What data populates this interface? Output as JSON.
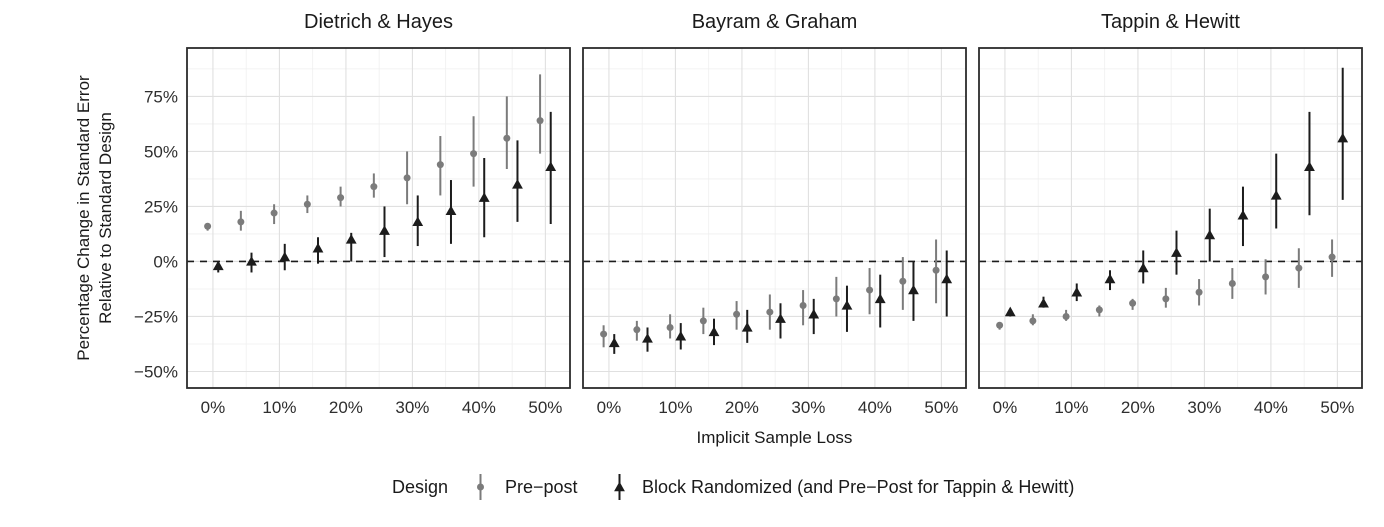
{
  "chart_data": {
    "type": "pointrange",
    "xlabel": "Implicit Sample Loss",
    "ylabel_lines": [
      "Percentage Change in Standard Error",
      "Relative to Standard Design"
    ],
    "xlim": [
      -3.9,
      53.7
    ],
    "ylim": [
      -57.5,
      97
    ],
    "x_ticks": {
      "values": [
        0,
        10,
        20,
        30,
        40,
        50
      ],
      "labels": [
        "0%",
        "10%",
        "20%",
        "30%",
        "40%",
        "50%"
      ]
    },
    "y_ticks": {
      "values": [
        -50,
        -25,
        0,
        25,
        50,
        75
      ],
      "labels": [
        "−50%",
        "−25%",
        "0%",
        "25%",
        "50%",
        "75%"
      ]
    },
    "grid": {
      "major": true,
      "minor": true,
      "major_color": "#e0e0e0",
      "minor_color": "#efefef"
    },
    "reference_line": {
      "y": 0,
      "style": "dashed",
      "color": "#1c1c1c"
    },
    "dodge_offset": 0.8,
    "series_styles": [
      {
        "name": "Pre−post",
        "shape": "circle",
        "color": "#7b7b7b"
      },
      {
        "name": "Block Randomized (and Pre−Post for Tappin & Hewitt)",
        "shape": "triangle",
        "color": "#1c1c1c"
      }
    ],
    "legend": {
      "title": "Design",
      "position": "bottom",
      "entries": [
        {
          "label": "Pre−post",
          "shape": "circle",
          "color": "#7b7b7b"
        },
        {
          "label": "Block Randomized (and Pre−Post for Tappin & Hewitt)",
          "shape": "triangle",
          "color": "#1c1c1c"
        }
      ]
    },
    "point_format": [
      "x_percent",
      "estimate",
      "ci_low",
      "ci_high"
    ],
    "panels": [
      {
        "title": "Dietrich & Hayes",
        "series": [
          {
            "name": "Pre−post",
            "points": [
              [
                0,
                16,
                14,
                17
              ],
              [
                5,
                18,
                14,
                23
              ],
              [
                10,
                22,
                17,
                26
              ],
              [
                15,
                26,
                22,
                30
              ],
              [
                20,
                29,
                25,
                34
              ],
              [
                25,
                34,
                29,
                40
              ],
              [
                30,
                38,
                26,
                50
              ],
              [
                35,
                44,
                30,
                57
              ],
              [
                40,
                49,
                34,
                66
              ],
              [
                45,
                56,
                42,
                75
              ],
              [
                50,
                64,
                49,
                85
              ]
            ]
          },
          {
            "name": "Block Randomized (and Pre−Post for Tappin & Hewitt)",
            "points": [
              [
                0,
                -2,
                -5,
                0
              ],
              [
                5,
                0,
                -5,
                4
              ],
              [
                10,
                2,
                -4,
                8
              ],
              [
                15,
                6,
                -1,
                11
              ],
              [
                20,
                10,
                0,
                13
              ],
              [
                25,
                14,
                2,
                25
              ],
              [
                30,
                18,
                7,
                30
              ],
              [
                35,
                23,
                8,
                37
              ],
              [
                40,
                29,
                11,
                47
              ],
              [
                45,
                35,
                18,
                55
              ],
              [
                50,
                43,
                17,
                68
              ]
            ]
          }
        ]
      },
      {
        "title": "Bayram & Graham",
        "series": [
          {
            "name": "Pre−post",
            "points": [
              [
                0,
                -33,
                -39,
                -29
              ],
              [
                5,
                -31,
                -36,
                -27
              ],
              [
                10,
                -30,
                -35,
                -24
              ],
              [
                15,
                -27,
                -33,
                -21
              ],
              [
                20,
                -24,
                -31,
                -18
              ],
              [
                25,
                -23,
                -31,
                -15
              ],
              [
                30,
                -20,
                -29,
                -13
              ],
              [
                35,
                -17,
                -25,
                -7
              ],
              [
                40,
                -13,
                -24,
                -3
              ],
              [
                45,
                -9,
                -22,
                2
              ],
              [
                50,
                -4,
                -19,
                10
              ]
            ]
          },
          {
            "name": "Block Randomized (and Pre−Post for Tappin & Hewitt)",
            "points": [
              [
                0,
                -37,
                -42,
                -33
              ],
              [
                5,
                -35,
                -41,
                -30
              ],
              [
                10,
                -34,
                -40,
                -28
              ],
              [
                15,
                -32,
                -38,
                -26
              ],
              [
                20,
                -30,
                -37,
                -22
              ],
              [
                25,
                -26,
                -35,
                -19
              ],
              [
                30,
                -24,
                -33,
                -17
              ],
              [
                35,
                -20,
                -32,
                -11
              ],
              [
                40,
                -17,
                -30,
                -6
              ],
              [
                45,
                -13,
                -27,
                0
              ],
              [
                50,
                -8,
                -25,
                5
              ]
            ]
          }
        ]
      },
      {
        "title": "Tappin & Hewitt",
        "series": [
          {
            "name": "Pre−post",
            "points": [
              [
                0,
                -29,
                -31,
                -28
              ],
              [
                5,
                -27,
                -29,
                -24
              ],
              [
                10,
                -25,
                -27,
                -22
              ],
              [
                15,
                -22,
                -25,
                -20
              ],
              [
                20,
                -19,
                -22,
                -17
              ],
              [
                25,
                -17,
                -21,
                -12
              ],
              [
                30,
                -14,
                -20,
                -8
              ],
              [
                35,
                -10,
                -17,
                -3
              ],
              [
                40,
                -7,
                -15,
                1
              ],
              [
                45,
                -3,
                -12,
                6
              ],
              [
                50,
                2,
                -7,
                10
              ]
            ]
          },
          {
            "name": "Block Randomized (and Pre−Post for Tappin & Hewitt)",
            "points": [
              [
                0,
                -23,
                -25,
                -22
              ],
              [
                5,
                -19,
                -21,
                -16
              ],
              [
                10,
                -14,
                -18,
                -10
              ],
              [
                15,
                -8,
                -13,
                -4
              ],
              [
                20,
                -3,
                -10,
                5
              ],
              [
                25,
                4,
                -6,
                14
              ],
              [
                30,
                12,
                0,
                24
              ],
              [
                35,
                21,
                7,
                34
              ],
              [
                40,
                30,
                15,
                49
              ],
              [
                45,
                43,
                21,
                68
              ],
              [
                50,
                56,
                28,
                88
              ]
            ]
          }
        ]
      }
    ]
  }
}
